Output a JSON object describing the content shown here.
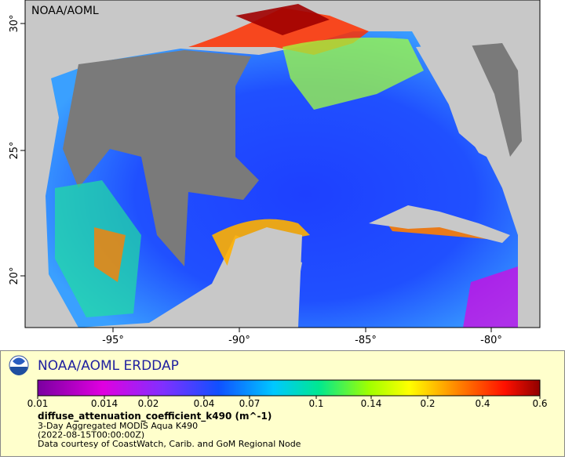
{
  "map": {
    "watermark": "NOAA/AOML",
    "lat_ticks": [
      "30°",
      "25°",
      "20°"
    ],
    "lon_ticks": [
      "-95°",
      "-90°",
      "-85°",
      "-80°"
    ]
  },
  "legend": {
    "title": "NOAA/AOML ERDDAP",
    "colorbar_ticks": [
      "0.01",
      "0.014",
      "0.02",
      "0.04",
      "0.07",
      "0.1",
      "0.14",
      "0.2",
      "0.4",
      "0.6"
    ],
    "variable": "diffuse_attenuation_coefficient_k490 (m^-1)",
    "lines": [
      "3-Day Aggregated MODIS Aqua K490",
      "(2022-08-15T00:00:00Z)",
      "Data courtesy of CoastWatch, Carib. and GoM Regional Node"
    ]
  }
}
